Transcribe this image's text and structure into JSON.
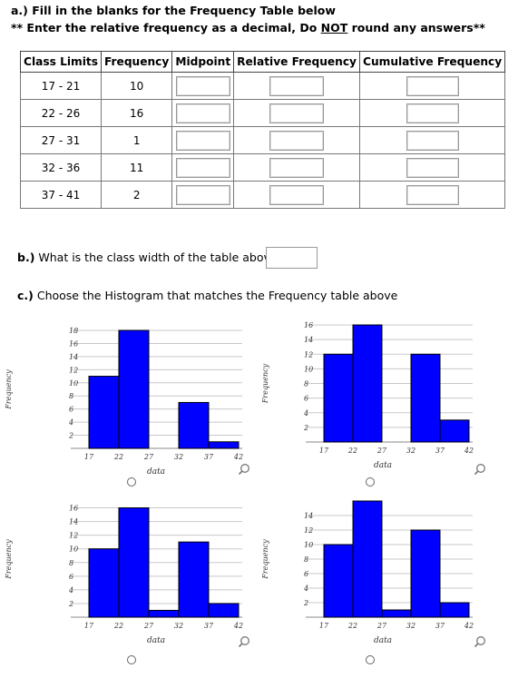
{
  "part_a": {
    "instruction": "a.) Fill in the blanks for the Frequency Table below",
    "note_prefix": "** Enter the relative frequency as a decimal, Do ",
    "note_not": "NOT",
    "note_suffix": " round any answers**",
    "headers": [
      "Class Limits",
      "Frequency",
      "Midpoint",
      "Relative Frequency",
      "Cumulative Frequency"
    ],
    "rows": [
      {
        "limits": "17 - 21",
        "freq": "10"
      },
      {
        "limits": "22 - 26",
        "freq": "16"
      },
      {
        "limits": "27 - 31",
        "freq": "1"
      },
      {
        "limits": "32 - 36",
        "freq": "11"
      },
      {
        "limits": "37 - 41",
        "freq": "2"
      }
    ]
  },
  "part_b": {
    "question": "b.) What is the class width of the table above?",
    "value": ""
  },
  "part_c": {
    "question": "c.) Choose the Histogram that matches the Frequency table above"
  },
  "colors": {
    "bar": "#0000ff",
    "bar_edge": "#000000",
    "grid": "#c8c8c8"
  },
  "chart_data": [
    {
      "type": "bar",
      "option": 1,
      "x_ticks": [
        "17",
        "22",
        "27",
        "32",
        "37",
        "42"
      ],
      "y_ticks": [
        "2",
        "4",
        "6",
        "8",
        "10",
        "12",
        "14",
        "16",
        "18"
      ],
      "values": [
        11,
        18,
        0,
        7,
        1
      ],
      "xlabel": "data",
      "ylabel": "Frequency",
      "ylim": [
        0,
        18
      ]
    },
    {
      "type": "bar",
      "option": 2,
      "x_ticks": [
        "17",
        "22",
        "27",
        "32",
        "37",
        "42"
      ],
      "y_ticks": [
        "2",
        "4",
        "6",
        "8",
        "10",
        "12",
        "14",
        "16"
      ],
      "values": [
        12,
        16,
        0,
        12,
        3
      ],
      "xlabel": "data",
      "ylabel": "Frequency",
      "ylim": [
        0,
        16
      ]
    },
    {
      "type": "bar",
      "option": 3,
      "x_ticks": [
        "17",
        "22",
        "27",
        "32",
        "37",
        "42"
      ],
      "y_ticks": [
        "2",
        "4",
        "6",
        "8",
        "10",
        "12",
        "14",
        "16"
      ],
      "values": [
        10,
        16,
        1,
        11,
        2
      ],
      "xlabel": "data",
      "ylabel": "Frequency",
      "ylim": [
        0,
        17
      ]
    },
    {
      "type": "bar",
      "option": 4,
      "x_ticks": [
        "17",
        "22",
        "27",
        "32",
        "37",
        "42"
      ],
      "y_ticks": [
        "2",
        "4",
        "6",
        "8",
        "10",
        "12",
        "14"
      ],
      "values": [
        10,
        16,
        1,
        12,
        2
      ],
      "xlabel": "data",
      "ylabel": "Frequency",
      "ylim": [
        0,
        16
      ]
    }
  ]
}
